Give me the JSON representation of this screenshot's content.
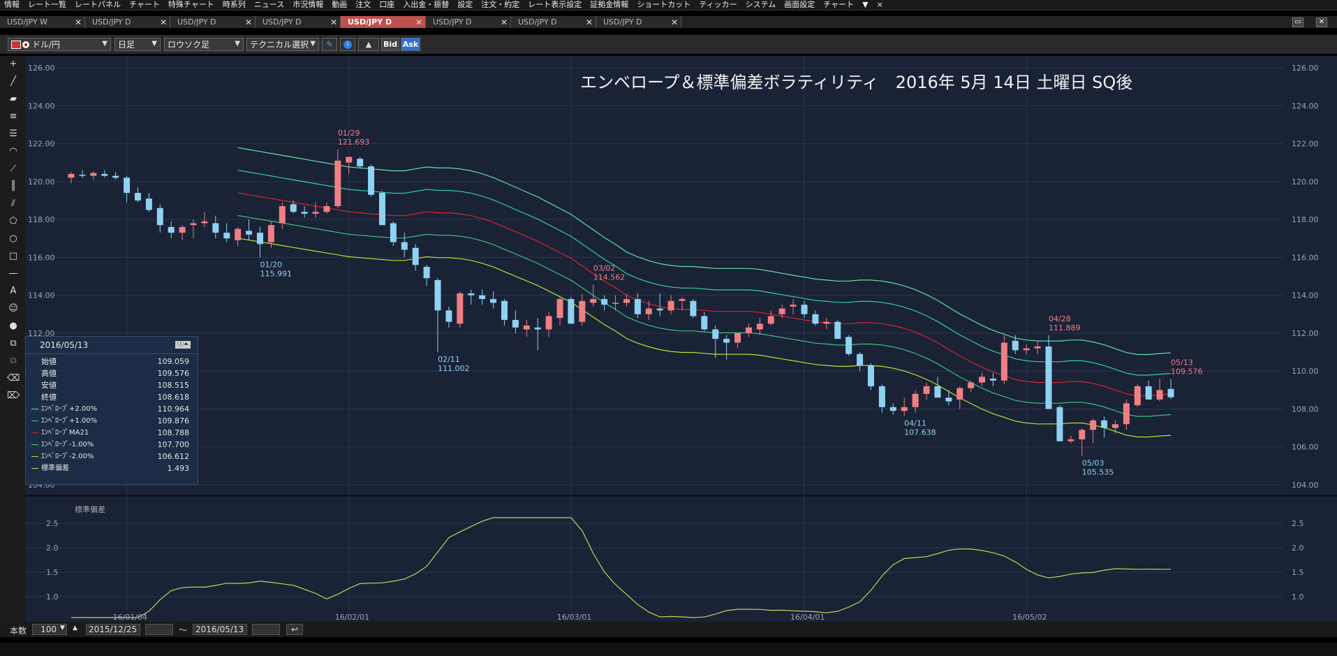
{
  "menubar": {
    "items": [
      "情報",
      "レート一覧",
      "レートパネル",
      "チャート",
      "特殊チャート",
      "時系列",
      "ニュース",
      "市況情報",
      "動画",
      "注文",
      "口座",
      "入出金・振替",
      "設定",
      "注文・約定",
      "レート表示設定",
      "証拠金情報",
      "ショートカット",
      "ティッカー",
      "システム",
      "画面設定",
      "チャート",
      "▼",
      "×"
    ]
  },
  "tabs": [
    {
      "label": "USD/JPY W",
      "active": false
    },
    {
      "label": "USD/JPY D",
      "active": false
    },
    {
      "label": "USD/JPY D",
      "active": false
    },
    {
      "label": "USD/JPY D",
      "active": false
    },
    {
      "label": "USD/JPY D",
      "active": true
    },
    {
      "label": "USD/JPY D",
      "active": false
    },
    {
      "label": "USD/JPY D",
      "active": false
    },
    {
      "label": "USD/JPY D",
      "active": false
    }
  ],
  "toolbar": {
    "pair": "ドル/円",
    "period": "日足",
    "chart_type": "ロウソク足",
    "technical": "テクニカル選択",
    "bid": "Bid",
    "ask": "Ask"
  },
  "title": "エンベロープ＆標準偏差ボラティリティ　2016年 5月 14日 土曜日 SQ後",
  "colors": {
    "bg": "#1a2236",
    "up": "#f07f84",
    "down": "#8ed2f2",
    "env2": "#5ee0a0",
    "env1": "#2fcf9f",
    "ma": "#d8232a",
    "envm1": "#3dbf80",
    "envm2": "#b8e02b",
    "sd": "#b6db5a",
    "grid": "#2b3650"
  },
  "axes": {
    "price_ticks": [
      "126.00",
      "124.00",
      "122.00",
      "120.00",
      "118.00",
      "116.00",
      "114.00",
      "112.00",
      "110.00",
      "108.00",
      "106.00",
      "104.00"
    ],
    "sd_ticks": [
      "2.5",
      "2.0",
      "1.5",
      "1.0"
    ],
    "date_ticks": [
      "16/01/04",
      "16/02/01",
      "16/03/01",
      "16/04/01",
      "16/05/02"
    ]
  },
  "sub_label": "標準偏差",
  "annotations": [
    {
      "date": "01/29",
      "price": "121.693",
      "type": "high"
    },
    {
      "date": "01/20",
      "price": "115.991",
      "type": "low"
    },
    {
      "date": "02/11",
      "price": "111.002",
      "type": "low"
    },
    {
      "date": "03/02",
      "price": "114.562",
      "type": "high"
    },
    {
      "date": "04/28",
      "price": "111.889",
      "type": "high"
    },
    {
      "date": "04/11",
      "price": "107.638",
      "type": "low"
    },
    {
      "date": "05/03",
      "price": "105.535",
      "type": "low"
    },
    {
      "date": "05/13",
      "price": "109.576",
      "type": "high"
    }
  ],
  "info": {
    "date": "2016/05/13",
    "rows": [
      {
        "label": "始値",
        "value": "109.059",
        "color": ""
      },
      {
        "label": "高値",
        "value": "109.576",
        "color": ""
      },
      {
        "label": "安値",
        "value": "108.515",
        "color": ""
      },
      {
        "label": "終値",
        "value": "108.618",
        "color": ""
      },
      {
        "label": "ｴﾝﾍﾞﾛｰﾌﾟ+2.00%",
        "value": "110.964",
        "color": "#5ee0a0"
      },
      {
        "label": "ｴﾝﾍﾞﾛｰﾌﾟ+1.00%",
        "value": "109.876",
        "color": "#2fcf9f"
      },
      {
        "label": "ｴﾝﾍﾞﾛｰﾌﾟMA21",
        "value": "108.788",
        "color": "#d8232a"
      },
      {
        "label": "ｴﾝﾍﾞﾛｰﾌﾟ-1.00%",
        "value": "107.700",
        "color": "#3dbf80"
      },
      {
        "label": "ｴﾝﾍﾞﾛｰﾌﾟ-2.00%",
        "value": "106.612",
        "color": "#b8e02b"
      },
      {
        "label": "標準偏差",
        "value": "1.493",
        "color": "#b6db5a"
      }
    ]
  },
  "statusbar": {
    "count_label": "本数",
    "count_value": "100",
    "from_date": "2015/12/25",
    "tilde": "〜",
    "to_date": "2016/05/13"
  },
  "chart_data": {
    "type": "candlestick",
    "dates": [
      "12/25",
      "12/28",
      "12/29",
      "12/30",
      "12/31",
      "01/04",
      "01/05",
      "01/06",
      "01/07",
      "01/08",
      "01/11",
      "01/12",
      "01/13",
      "01/14",
      "01/15",
      "01/18",
      "01/19",
      "01/20",
      "01/21",
      "01/22",
      "01/25",
      "01/26",
      "01/27",
      "01/28",
      "01/29",
      "02/01",
      "02/02",
      "02/03",
      "02/04",
      "02/05",
      "02/08",
      "02/09",
      "02/10",
      "02/11",
      "02/12",
      "02/15",
      "02/16",
      "02/17",
      "02/18",
      "02/19",
      "02/22",
      "02/23",
      "02/24",
      "02/25",
      "02/26",
      "02/29",
      "03/01",
      "03/02",
      "03/03",
      "03/04",
      "03/07",
      "03/08",
      "03/09",
      "03/10",
      "03/11",
      "03/14",
      "03/15",
      "03/16",
      "03/17",
      "03/18",
      "03/21",
      "03/22",
      "03/23",
      "03/24",
      "03/25",
      "03/28",
      "03/29",
      "03/30",
      "03/31",
      "04/01",
      "04/04",
      "04/05",
      "04/06",
      "04/07",
      "04/08",
      "04/11",
      "04/12",
      "04/13",
      "04/14",
      "04/15",
      "04/18",
      "04/19",
      "04/20",
      "04/21",
      "04/22",
      "04/25",
      "04/26",
      "04/27",
      "04/28",
      "04/29",
      "05/02",
      "05/03",
      "05/04",
      "05/05",
      "05/06",
      "05/09",
      "05/10",
      "05/11",
      "05/12",
      "05/13"
    ],
    "open": [
      120.2,
      120.35,
      120.3,
      120.4,
      120.3,
      120.2,
      119.4,
      119.1,
      118.6,
      117.6,
      117.3,
      117.7,
      117.8,
      117.8,
      117.3,
      116.9,
      117.4,
      117.3,
      116.8,
      117.8,
      118.8,
      118.4,
      118.3,
      118.4,
      118.7,
      121.0,
      121.2,
      120.8,
      119.4,
      117.8,
      116.8,
      116.5,
      115.5,
      114.8,
      113.2,
      112.5,
      114.1,
      114.0,
      113.8,
      113.7,
      112.7,
      112.2,
      112.3,
      112.2,
      112.8,
      113.8,
      112.6,
      113.6,
      113.8,
      113.6,
      113.6,
      113.8,
      113.0,
      113.3,
      113.2,
      113.7,
      113.7,
      112.9,
      112.2,
      111.7,
      111.5,
      112.0,
      112.2,
      112.5,
      113.0,
      113.4,
      113.5,
      113.0,
      112.5,
      112.6,
      111.8,
      110.9,
      110.3,
      109.2,
      108.1,
      107.9,
      108.1,
      108.8,
      109.2,
      108.6,
      108.5,
      109.1,
      109.4,
      109.6,
      109.5,
      111.6,
      111.1,
      111.2,
      111.3,
      108.1,
      106.3,
      106.4,
      106.9,
      107.4,
      107.0,
      107.2,
      108.2,
      109.2,
      108.5,
      109.06
    ],
    "high": [
      120.5,
      120.6,
      120.55,
      120.6,
      120.5,
      120.3,
      119.7,
      119.4,
      118.8,
      117.9,
      117.7,
      118.0,
      118.4,
      118.2,
      117.8,
      117.6,
      118.0,
      117.6,
      117.9,
      118.9,
      119.0,
      118.7,
      118.9,
      118.9,
      121.69,
      121.3,
      121.3,
      120.9,
      119.5,
      117.9,
      117.3,
      116.7,
      115.6,
      114.9,
      113.4,
      114.2,
      114.3,
      114.3,
      114.2,
      113.8,
      113.2,
      112.7,
      112.8,
      113.1,
      113.9,
      113.9,
      114.05,
      114.56,
      114.0,
      114.0,
      114.05,
      114.1,
      113.7,
      114.1,
      114.0,
      113.9,
      113.8,
      113.1,
      112.4,
      111.9,
      112.0,
      112.5,
      112.8,
      113.2,
      113.5,
      113.8,
      113.7,
      113.2,
      112.8,
      112.7,
      111.9,
      111.0,
      110.4,
      109.3,
      108.3,
      108.6,
      109.0,
      109.4,
      109.7,
      109.0,
      109.2,
      109.5,
      109.9,
      109.9,
      111.9,
      111.9,
      111.4,
      111.6,
      111.89,
      108.2,
      106.6,
      107.0,
      107.5,
      107.6,
      107.4,
      108.5,
      109.3,
      109.5,
      109.6,
      109.58
    ],
    "low": [
      119.9,
      120.2,
      120.1,
      120.2,
      120.1,
      118.9,
      118.9,
      118.4,
      117.3,
      117.0,
      116.9,
      117.0,
      117.6,
      117.0,
      116.8,
      116.6,
      116.9,
      115.99,
      116.5,
      117.5,
      118.3,
      118.1,
      118.1,
      118.3,
      118.6,
      120.4,
      120.7,
      119.2,
      117.7,
      116.6,
      116.0,
      115.3,
      114.5,
      111.0,
      112.3,
      112.3,
      113.5,
      113.5,
      113.3,
      112.4,
      112.0,
      111.8,
      111.1,
      111.8,
      112.4,
      112.6,
      112.4,
      113.4,
      113.2,
      113.2,
      113.4,
      112.8,
      112.7,
      112.9,
      113.0,
      113.2,
      112.8,
      112.1,
      110.7,
      110.6,
      111.2,
      111.8,
      111.9,
      112.4,
      112.8,
      113.0,
      112.8,
      112.4,
      112.2,
      111.8,
      110.8,
      110.0,
      109.0,
      107.8,
      107.7,
      107.64,
      107.8,
      108.5,
      108.7,
      108.2,
      108.0,
      108.9,
      109.2,
      109.2,
      109.3,
      110.9,
      110.9,
      110.9,
      108.0,
      106.3,
      106.2,
      105.54,
      106.2,
      106.5,
      106.7,
      106.9,
      108.1,
      108.5,
      108.4,
      108.52
    ],
    "close": [
      120.4,
      120.3,
      120.45,
      120.3,
      120.2,
      119.4,
      119.0,
      118.5,
      117.7,
      117.3,
      117.6,
      117.8,
      117.9,
      117.3,
      117.0,
      117.5,
      117.2,
      116.7,
      117.7,
      118.7,
      118.4,
      118.3,
      118.4,
      118.7,
      121.1,
      121.3,
      120.8,
      119.3,
      117.7,
      116.8,
      116.4,
      115.6,
      114.9,
      113.2,
      112.6,
      114.1,
      114.0,
      113.8,
      113.6,
      112.7,
      112.3,
      112.4,
      112.2,
      112.9,
      113.8,
      112.5,
      113.7,
      113.8,
      113.5,
      113.6,
      113.8,
      113.0,
      113.3,
      113.2,
      113.7,
      113.8,
      112.9,
      112.2,
      111.7,
      111.5,
      112.0,
      112.3,
      112.5,
      112.9,
      113.3,
      113.5,
      113.0,
      112.5,
      112.6,
      111.7,
      110.9,
      110.3,
      109.2,
      108.1,
      107.9,
      108.1,
      108.8,
      109.2,
      108.6,
      108.4,
      109.1,
      109.4,
      109.7,
      109.5,
      111.5,
      111.1,
      111.2,
      111.3,
      108.0,
      106.3,
      106.4,
      106.9,
      107.4,
      107.0,
      107.2,
      108.3,
      109.2,
      108.5,
      109.0,
      108.62
    ],
    "envelope_ma21": [
      119.4,
      119.3,
      119.2,
      119.1,
      119.0,
      118.9,
      118.8,
      118.7,
      118.6,
      118.5,
      118.4,
      118.35,
      118.3,
      118.25,
      118.2,
      118.2,
      118.3,
      118.4,
      118.35,
      118.35,
      118.3,
      118.2,
      118.05,
      117.85,
      117.6,
      117.35,
      117.1,
      116.85,
      116.55,
      116.25,
      115.95,
      115.55,
      115.15,
      114.75,
      114.4,
      114.0,
      113.75,
      113.55,
      113.4,
      113.3,
      113.25,
      113.25,
      113.2,
      113.15,
      113.15,
      113.15,
      113.15,
      113.1,
      113.0,
      112.9,
      112.8,
      112.7,
      112.6,
      112.55,
      112.5,
      112.5,
      112.55,
      112.55,
      112.5,
      112.4,
      112.25,
      112.05,
      111.8,
      111.5,
      111.15,
      110.8,
      110.5,
      110.2,
      109.95,
      109.75,
      109.55,
      109.45,
      109.4,
      109.4,
      109.4,
      109.45,
      109.45,
      109.35,
      109.2,
      109.0,
      108.8,
      108.7,
      108.7,
      108.75,
      108.79
    ]
  }
}
